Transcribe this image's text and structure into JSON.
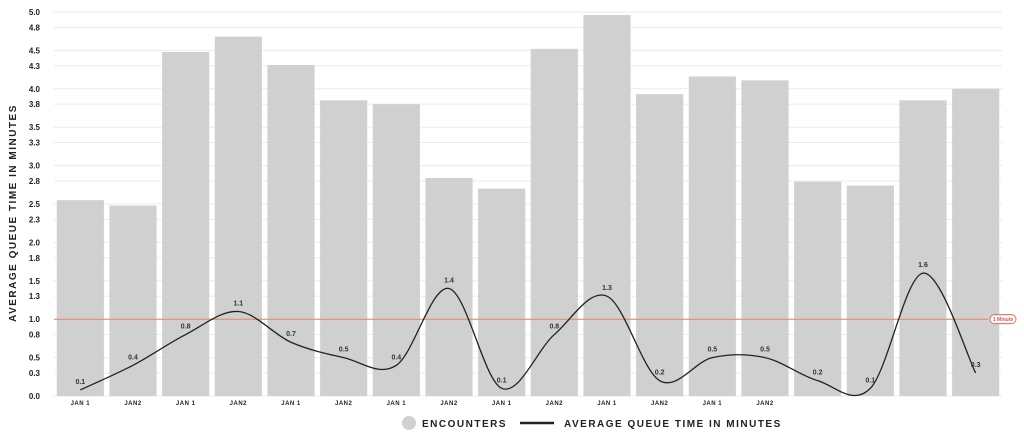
{
  "chart_data": {
    "type": "bar",
    "ylabel": "AVERAGE QUEUE TIME IN MINUTES",
    "ylim": [
      0,
      5.0
    ],
    "y_ticks": [
      "0.0",
      "0.3",
      "0.5",
      "0.8",
      "1.0",
      "1.3",
      "1.5",
      "1.8",
      "2.0",
      "2.3",
      "2.5",
      "2.8",
      "3.0",
      "3.3",
      "3.5",
      "3.8",
      "4.0",
      "4.3",
      "4.5",
      "4.8",
      "5.0"
    ],
    "grid": true,
    "categories": [
      "JAN 1",
      "JAN2",
      "JAN 1",
      "JAN2",
      "JAN 1",
      "JAN2",
      "JAN 1",
      "JAN2",
      "JAN 1",
      "JAN2",
      "JAN 1",
      "JAN2",
      "JAN 1",
      "JAN2",
      "",
      "",
      "",
      ""
    ],
    "series": [
      {
        "name": "ENCOUNTERS",
        "type": "bar",
        "color": "#d0d0d0",
        "values": [
          2.55,
          2.48,
          4.48,
          4.68,
          4.31,
          3.85,
          3.8,
          2.84,
          2.7,
          4.52,
          4.96,
          3.93,
          4.16,
          4.11,
          2.79,
          2.74,
          3.85,
          4.0
        ]
      },
      {
        "name": "AVERAGE QUEUE TIME IN MINUTES",
        "type": "line",
        "color": "#222222",
        "values": [
          0.08,
          0.4,
          0.8,
          1.1,
          0.7,
          0.5,
          0.4,
          1.4,
          0.1,
          0.8,
          1.3,
          0.2,
          0.5,
          0.5,
          0.2,
          0.1,
          1.6,
          0.3
        ],
        "labels": [
          "0.1",
          "0.4",
          "0.8",
          "1.1",
          "0.7",
          "0.5",
          "0.4",
          "1.4",
          "0.1",
          "0.8",
          "1.3",
          "0.2",
          "0.5",
          "0.5",
          "0.2",
          "0.1",
          "1.6",
          "0.3"
        ]
      }
    ],
    "reference_line": {
      "value": 1.0,
      "label": "1 Minute",
      "color": "#e8825e"
    },
    "legend": {
      "position": "bottom-center",
      "items": [
        {
          "label": "ENCOUNTERS",
          "marker": "circle",
          "color": "#d0d0d0"
        },
        {
          "label": "AVERAGE QUEUE TIME IN MINUTES",
          "marker": "line",
          "color": "#222222"
        }
      ]
    }
  }
}
